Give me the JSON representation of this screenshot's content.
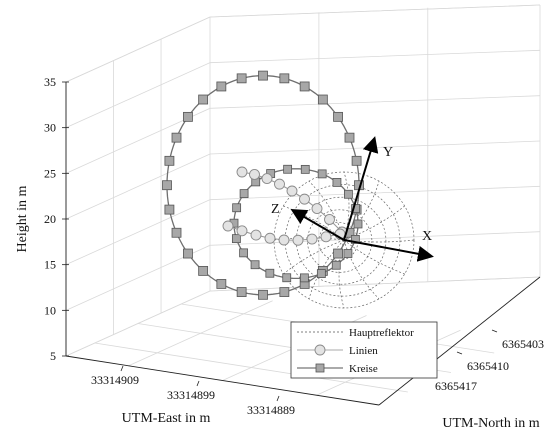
{
  "chart_data": {
    "type": "3d-line",
    "xlabel": "UTM-East in m",
    "ylabel": "UTM-North in m",
    "zlabel": "Height in m",
    "x_ticks": [
      "33314909",
      "33314899",
      "33314889"
    ],
    "y_ticks": [
      "6365417",
      "6365410",
      "6365403"
    ],
    "z_ticks": [
      "5",
      "10",
      "15",
      "20",
      "25",
      "30",
      "35"
    ],
    "zlim": [
      5,
      35
    ],
    "grid": true,
    "legend_position": "bottom-right",
    "series": [
      {
        "name": "Hauptreflektor",
        "style": "dotted",
        "marker": "none",
        "color": "#555555"
      },
      {
        "name": "Linien",
        "style": "solid",
        "marker": "circle",
        "color": "#bbbbbb"
      },
      {
        "name": "Kreise",
        "style": "solid",
        "marker": "square",
        "color": "#777777"
      }
    ],
    "kreise_big": {
      "center_z": 23.7,
      "radius_z": 12.0,
      "markers": 28
    },
    "kreise_small": {
      "center_z": 19.5,
      "radius_z": 6.0,
      "markers": 22
    },
    "linien_arcs": 2,
    "vectors": [
      {
        "label": "X"
      },
      {
        "label": "Y"
      },
      {
        "label": "Z"
      }
    ]
  }
}
